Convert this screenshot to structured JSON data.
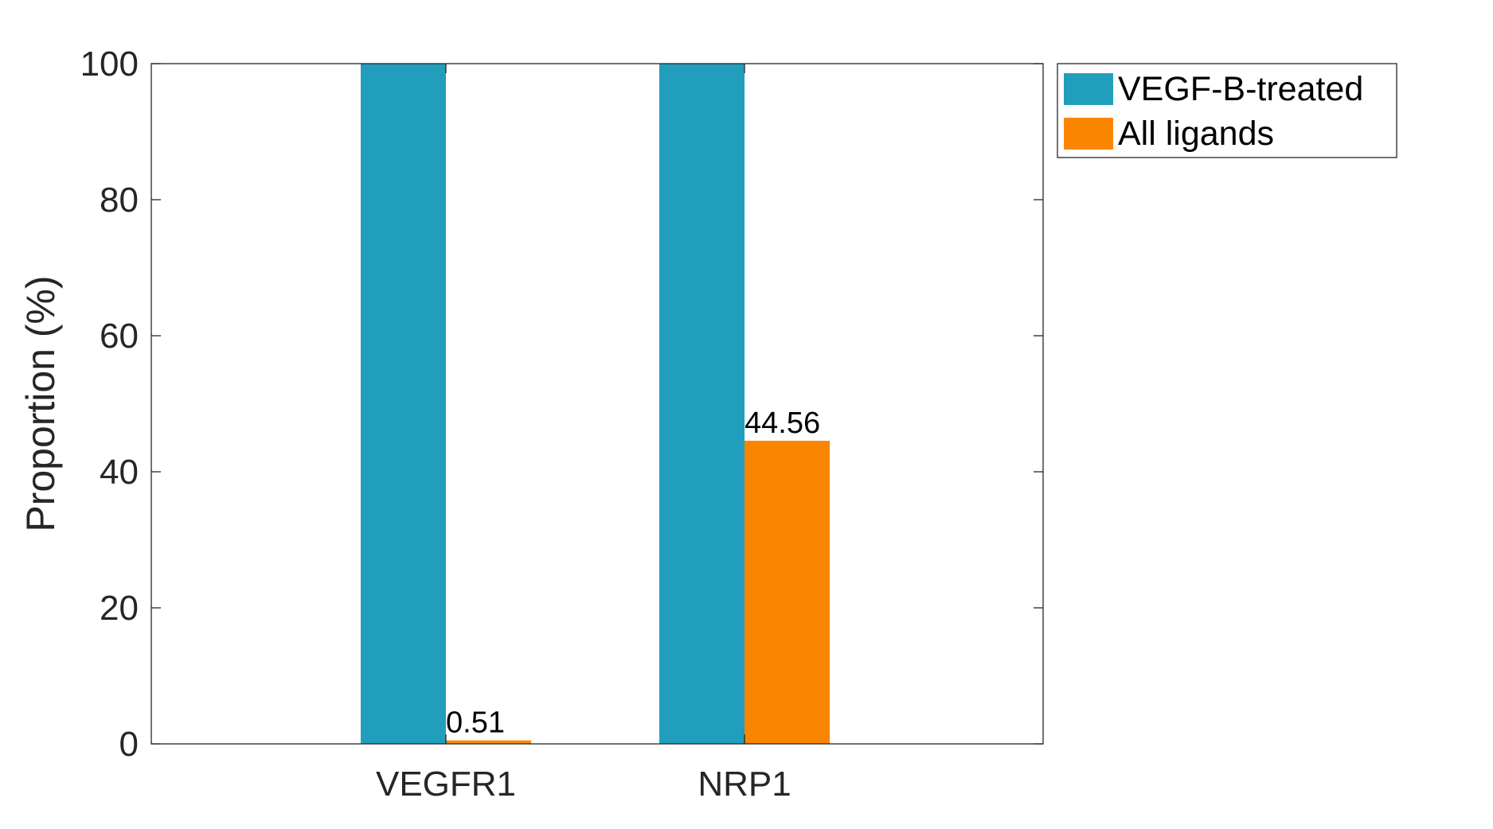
{
  "chart_data": {
    "type": "bar",
    "categories": [
      "VEGFR1",
      "NRP1"
    ],
    "series": [
      {
        "name": "VEGF-B-treated",
        "values": [
          100,
          100
        ],
        "color": "#229EBD"
      },
      {
        "name": "All ligands",
        "values": [
          0.51,
          44.56
        ],
        "color": "#FA8600"
      }
    ],
    "data_labels": {
      "All ligands": [
        "0.51",
        "44.56"
      ]
    },
    "ylabel": "Proportion (%)",
    "xlabel": "",
    "ylim": [
      0,
      100
    ],
    "yticks": [
      0,
      20,
      40,
      60,
      80,
      100
    ],
    "grid": false,
    "legend_position": "outside-top-right",
    "axis_color": "#262626"
  }
}
